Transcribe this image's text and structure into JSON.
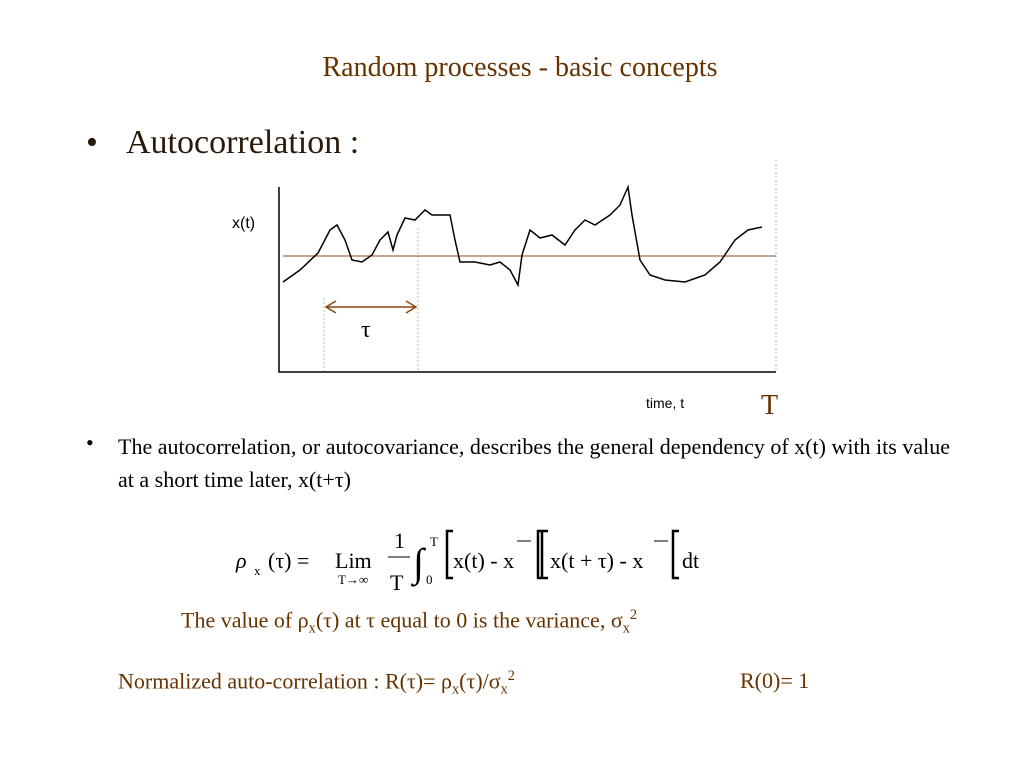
{
  "header": {
    "title": "Random processes - basic concepts"
  },
  "bullet1": "Autocorrelation :",
  "diagram": {
    "y_label": "x(t)",
    "lag_label": "τ",
    "x_label": "time, t",
    "period_label": "T"
  },
  "bullet2": "The autocorrelation, or autocovariance, describes the general dependency of x(t) with its value at a short time later,  x(t+τ)",
  "formula": {
    "lhs": "ρ",
    "lhs_sub": "x",
    "lhs_arg": "(τ) =",
    "lim": "Lim",
    "lim_sub": "T→∞",
    "num": "1",
    "den": "T",
    "int_upper": "T",
    "int_lower": "0",
    "factor1": "x(t) - x",
    "factor2": "x(t + τ) - x",
    "dt": "dt"
  },
  "variance_note": [
    "The value of ρ",
    "x",
    "(τ) at τ equal to 0 is the variance, σ",
    "x",
    "2"
  ],
  "normalized": [
    "Normalized auto-correlation  : R(τ)= ρ",
    "x",
    "(τ)/σ",
    "x",
    "2"
  ],
  "normalized_value": "R(0)= 1"
}
